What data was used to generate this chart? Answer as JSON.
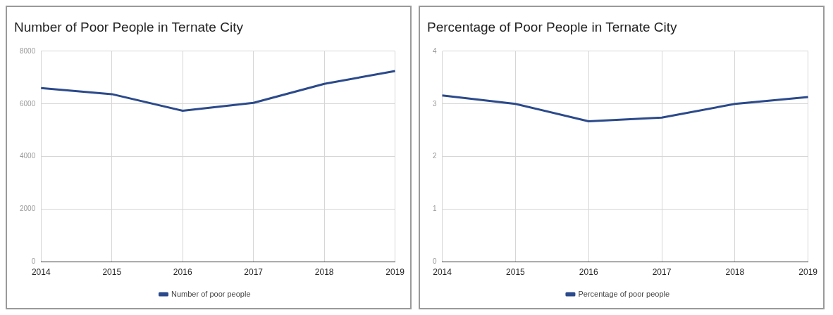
{
  "chart_data": [
    {
      "type": "line",
      "title": "Number of Poor People in Ternate City",
      "categories": [
        "2014",
        "2015",
        "2016",
        "2017",
        "2018",
        "2019"
      ],
      "series": [
        {
          "name": "Number of poor people",
          "color": "#2b4a8b",
          "values": [
            6600,
            6370,
            5740,
            6040,
            6760,
            7250
          ]
        }
      ],
      "ylim": [
        0,
        8000
      ],
      "yticks": [
        0,
        2000,
        4000,
        6000,
        8000
      ],
      "grid": true,
      "legend": "bottom",
      "marker": "none",
      "line_style": "solid"
    },
    {
      "type": "line",
      "title": "Percentage of Poor People in Ternate City",
      "categories": [
        "2014",
        "2015",
        "2016",
        "2017",
        "2018",
        "2019"
      ],
      "series": [
        {
          "name": "Percentage of poor people",
          "color": "#2b4a8b",
          "values": [
            3.16,
            3.0,
            2.67,
            2.74,
            3.0,
            3.13
          ]
        }
      ],
      "ylim": [
        0,
        4
      ],
      "yticks": [
        0,
        1,
        2,
        3,
        4
      ],
      "grid": true,
      "legend": "bottom",
      "marker": "none",
      "line_style": "solid"
    }
  ]
}
